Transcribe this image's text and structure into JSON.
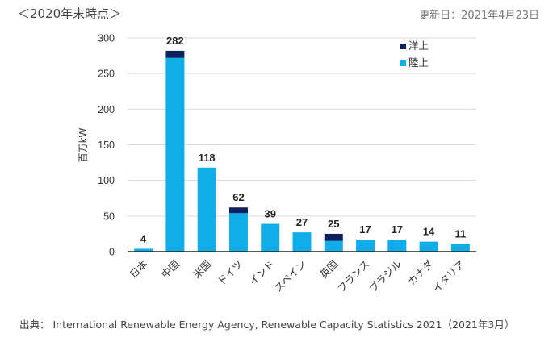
{
  "header": {
    "title": "＜2020年末時点＞",
    "updated": "更新日：2021年4月23日"
  },
  "footer": {
    "source": "出典： International Renewable Energy Agency, Renewable Capacity Statistics 2021（2021年3月）"
  },
  "colors": {
    "offshore": "#0d2160",
    "onshore": "#10aee8",
    "grid": "#d9d9d9",
    "axis": "#222222"
  },
  "chart_data": {
    "type": "bar",
    "stacked": true,
    "title": "＜2020年末時点＞",
    "xlabel": "",
    "ylabel": "百万kW",
    "ylim": [
      0,
      300
    ],
    "yticks": [
      0,
      50,
      100,
      150,
      200,
      250,
      300
    ],
    "grid": true,
    "legend_position": "top-right",
    "categories": [
      "日本",
      "中国",
      "米国",
      "ドイツ",
      "インド",
      "スペイン",
      "英国",
      "フランス",
      "ブラジル",
      "カナダ",
      "イタリア"
    ],
    "series": [
      {
        "name": "陸上",
        "color": "#10aee8",
        "values": [
          4,
          272,
          118,
          54,
          39,
          27,
          15,
          17,
          17,
          14,
          11
        ]
      },
      {
        "name": "洋上",
        "color": "#0d2160",
        "values": [
          0,
          10,
          0,
          8,
          0,
          0,
          10,
          0,
          0,
          0,
          0
        ]
      }
    ],
    "totals": [
      4,
      282,
      118,
      62,
      39,
      27,
      25,
      17,
      17,
      14,
      11
    ],
    "legend": [
      "洋上",
      "陸上"
    ]
  }
}
